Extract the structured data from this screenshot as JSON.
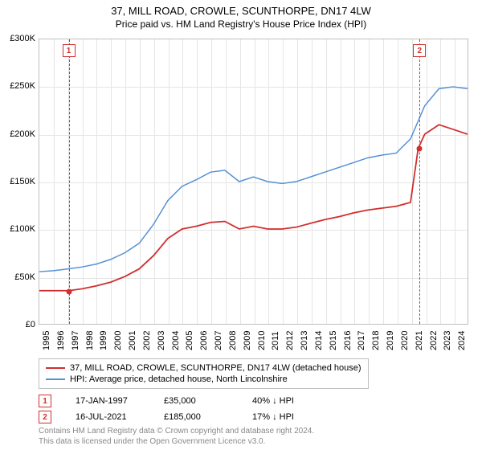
{
  "title": "37, MILL ROAD, CROWLE, SCUNTHORPE, DN17 4LW",
  "subtitle": "Price paid vs. HM Land Registry's House Price Index (HPI)",
  "chart": {
    "type": "line",
    "background_color": "#ffffff",
    "grid_color": "#e5e5e5",
    "border_color": "#bfbfbf",
    "x_axis": {
      "ticks": [
        1995,
        1996,
        1997,
        1998,
        1999,
        2000,
        2001,
        2002,
        2003,
        2004,
        2005,
        2006,
        2007,
        2008,
        2009,
        2010,
        2011,
        2012,
        2013,
        2014,
        2015,
        2016,
        2017,
        2018,
        2019,
        2020,
        2021,
        2022,
        2023,
        2024
      ],
      "xlim": [
        1995,
        2025
      ],
      "label_fontsize": 11,
      "rotation": -90
    },
    "y_axis": {
      "ticks": [
        0,
        50000,
        100000,
        150000,
        200000,
        250000,
        300000
      ],
      "tick_labels": [
        "£0",
        "£50K",
        "£100K",
        "£150K",
        "£200K",
        "£250K",
        "£300K"
      ],
      "ylim": [
        0,
        300000
      ],
      "label_fontsize": 11
    },
    "series": [
      {
        "name": "price_paid",
        "label": "37, MILL ROAD, CROWLE, SCUNTHORPE, DN17 4LW (detached house)",
        "color": "#d12e2e",
        "line_width": 1.8,
        "data": [
          [
            1995,
            35000
          ],
          [
            1996,
            35000
          ],
          [
            1997.05,
            35000
          ],
          [
            1998,
            37000
          ],
          [
            1999,
            40000
          ],
          [
            2000,
            44000
          ],
          [
            2001,
            50000
          ],
          [
            2002,
            58000
          ],
          [
            2003,
            72000
          ],
          [
            2004,
            90000
          ],
          [
            2005,
            100000
          ],
          [
            2006,
            103000
          ],
          [
            2007,
            107000
          ],
          [
            2008,
            108000
          ],
          [
            2009,
            100000
          ],
          [
            2010,
            103000
          ],
          [
            2011,
            100000
          ],
          [
            2012,
            100000
          ],
          [
            2013,
            102000
          ],
          [
            2014,
            106000
          ],
          [
            2015,
            110000
          ],
          [
            2016,
            113000
          ],
          [
            2017,
            117000
          ],
          [
            2018,
            120000
          ],
          [
            2019,
            122000
          ],
          [
            2020,
            124000
          ],
          [
            2021,
            128000
          ],
          [
            2021.54,
            185000
          ],
          [
            2022,
            200000
          ],
          [
            2023,
            210000
          ],
          [
            2024,
            205000
          ],
          [
            2025,
            200000
          ]
        ]
      },
      {
        "name": "hpi",
        "label": "HPI: Average price, detached house, North Lincolnshire",
        "color": "#5591d6",
        "line_width": 1.5,
        "data": [
          [
            1995,
            55000
          ],
          [
            1996,
            56000
          ],
          [
            1997,
            58000
          ],
          [
            1998,
            60000
          ],
          [
            1999,
            63000
          ],
          [
            2000,
            68000
          ],
          [
            2001,
            75000
          ],
          [
            2002,
            85000
          ],
          [
            2003,
            105000
          ],
          [
            2004,
            130000
          ],
          [
            2005,
            145000
          ],
          [
            2006,
            152000
          ],
          [
            2007,
            160000
          ],
          [
            2008,
            162000
          ],
          [
            2009,
            150000
          ],
          [
            2010,
            155000
          ],
          [
            2011,
            150000
          ],
          [
            2012,
            148000
          ],
          [
            2013,
            150000
          ],
          [
            2014,
            155000
          ],
          [
            2015,
            160000
          ],
          [
            2016,
            165000
          ],
          [
            2017,
            170000
          ],
          [
            2018,
            175000
          ],
          [
            2019,
            178000
          ],
          [
            2020,
            180000
          ],
          [
            2021,
            195000
          ],
          [
            2022,
            230000
          ],
          [
            2023,
            248000
          ],
          [
            2024,
            250000
          ],
          [
            2025,
            248000
          ]
        ]
      }
    ],
    "markers": [
      {
        "id": "1",
        "x": 1997.05,
        "y": 35000,
        "date": "17-JAN-1997",
        "price": "£35,000",
        "pct": "40% ↓ HPI",
        "color": "#d12e2e"
      },
      {
        "id": "2",
        "x": 2021.54,
        "y": 185000,
        "date": "16-JUL-2021",
        "price": "£185,000",
        "pct": "17% ↓ HPI",
        "color": "#d12e2e"
      }
    ]
  },
  "legend": {
    "border_color": "#bfbfbf",
    "fontsize": 11
  },
  "credits": {
    "line1": "Contains HM Land Registry data © Crown copyright and database right 2024.",
    "line2": "This data is licensed under the Open Government Licence v3.0."
  }
}
